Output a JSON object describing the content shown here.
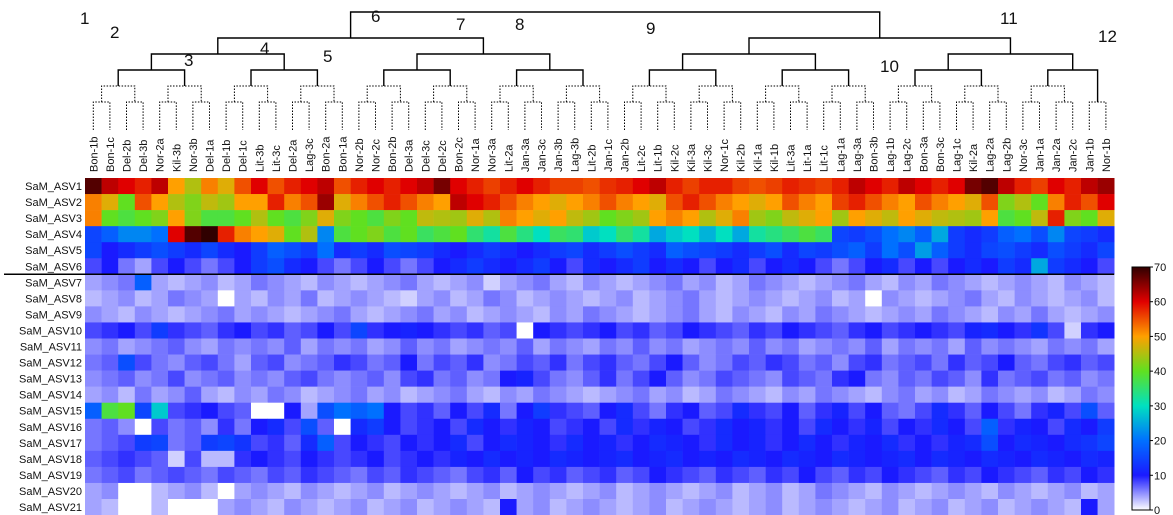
{
  "chart_data": {
    "type": "heatmap",
    "x": [
      "Bon-1b",
      "Bon-1c",
      "Del-2b",
      "Del-3b",
      "Nor-2a",
      "Kil-3b",
      "Nor-3b",
      "Del-1a",
      "Del-1b",
      "Del-1c",
      "Lit-3b",
      "Lit-3c",
      "Del-2a",
      "Lag-3c",
      "Bon-2a",
      "Bon-1a",
      "Nor-2b",
      "Nor-2c",
      "Bon-2b",
      "Del-3a",
      "Del-3c",
      "Del-2c",
      "Bon-2c",
      "Nor-1a",
      "Nor-3a",
      "Lit-2a",
      "Jan-3a",
      "Jan-3c",
      "Jan-3b",
      "Lag-3b",
      "Lit-2b",
      "Jan-1c",
      "Jan-2b",
      "Lit-2c",
      "Lit-1b",
      "Kil-2c",
      "Kil-3a",
      "Kil-3c",
      "Nor-1c",
      "Kil-2b",
      "Kil-1a",
      "Kil-1b",
      "Lit-3a",
      "Lit-1a",
      "Lit-1c",
      "Lag-1a",
      "Lag-3a",
      "Bon-3b",
      "Lag-1b",
      "Lag-2c",
      "Bon-3a",
      "Bon-3c",
      "Lag-1c",
      "Kil-2a",
      "Lag-2a",
      "Lag-2b",
      "Nor-3c",
      "Jan-1a",
      "Jan-2a",
      "Jan-2c",
      "Jan-1b",
      "Nor-1b"
    ],
    "y": [
      "SaM_ASV1",
      "SaM_ASV2",
      "SaM_ASV3",
      "SaM_ASV4",
      "SaM_ASV5",
      "SaM_ASV6",
      "SaM_ASV7",
      "SaM_ASV8",
      "SaM_ASV9",
      "SaM_ASV10",
      "SaM_ASV11",
      "SaM_ASV12",
      "SaM_ASV13",
      "SaM_ASV14",
      "SaM_ASV15",
      "SaM_ASV16",
      "SaM_ASV17",
      "SaM_ASV18",
      "SaM_ASV19",
      "SaM_ASV20",
      "SaM_ASV21"
    ],
    "values": [
      [
        68,
        62,
        60,
        58,
        62,
        50,
        45,
        52,
        48,
        55,
        60,
        55,
        58,
        60,
        62,
        55,
        58,
        60,
        58,
        60,
        62,
        66,
        60,
        58,
        56,
        58,
        60,
        58,
        56,
        56,
        55,
        57,
        58,
        60,
        62,
        58,
        56,
        58,
        58,
        56,
        55,
        56,
        58,
        57,
        56,
        58,
        62,
        60,
        58,
        62,
        60,
        58,
        60,
        66,
        68,
        62,
        58,
        56,
        60,
        58,
        62,
        64
      ],
      [
        52,
        48,
        40,
        55,
        50,
        45,
        42,
        46,
        44,
        50,
        50,
        58,
        52,
        55,
        64,
        48,
        52,
        55,
        58,
        55,
        52,
        50,
        62,
        60,
        58,
        55,
        52,
        50,
        48,
        50,
        52,
        55,
        52,
        50,
        48,
        55,
        58,
        55,
        52,
        50,
        48,
        50,
        55,
        52,
        50,
        56,
        58,
        55,
        52,
        50,
        55,
        52,
        50,
        48,
        55,
        42,
        45,
        40,
        52,
        58,
        55,
        60
      ],
      [
        52,
        40,
        38,
        40,
        42,
        50,
        42,
        38,
        38,
        40,
        45,
        40,
        38,
        42,
        48,
        42,
        40,
        38,
        42,
        40,
        46,
        45,
        44,
        48,
        45,
        52,
        50,
        48,
        50,
        46,
        44,
        40,
        42,
        44,
        50,
        52,
        50,
        45,
        48,
        52,
        44,
        42,
        46,
        48,
        50,
        44,
        50,
        48,
        46,
        50,
        48,
        46,
        45,
        44,
        50,
        38,
        40,
        46,
        58,
        42,
        40,
        48
      ],
      [
        15,
        18,
        22,
        22,
        20,
        60,
        68,
        70,
        58,
        52,
        50,
        48,
        40,
        45,
        22,
        38,
        40,
        42,
        38,
        40,
        36,
        38,
        40,
        35,
        32,
        38,
        34,
        30,
        36,
        35,
        28,
        30,
        35,
        32,
        25,
        28,
        30,
        26,
        30,
        25,
        32,
        34,
        36,
        38,
        36,
        15,
        14,
        16,
        20,
        22,
        18,
        25,
        14,
        12,
        14,
        18,
        20,
        16,
        22,
        15,
        14,
        12
      ],
      [
        15,
        10,
        12,
        14,
        16,
        14,
        12,
        15,
        12,
        10,
        14,
        18,
        16,
        14,
        20,
        12,
        14,
        12,
        16,
        15,
        14,
        12,
        10,
        12,
        14,
        12,
        10,
        12,
        14,
        15,
        12,
        14,
        16,
        14,
        12,
        18,
        16,
        15,
        14,
        12,
        14,
        16,
        12,
        15,
        14,
        16,
        18,
        14,
        20,
        16,
        24,
        18,
        14,
        12,
        15,
        16,
        14,
        12,
        16,
        14,
        12,
        15
      ],
      [
        8,
        10,
        6,
        4,
        8,
        10,
        8,
        6,
        8,
        10,
        14,
        16,
        12,
        10,
        8,
        6,
        8,
        10,
        8,
        6,
        8,
        10,
        12,
        14,
        12,
        10,
        12,
        14,
        10,
        8,
        12,
        10,
        12,
        14,
        10,
        12,
        10,
        8,
        10,
        12,
        8,
        10,
        12,
        10,
        8,
        6,
        8,
        10,
        12,
        8,
        10,
        8,
        10,
        12,
        10,
        14,
        12,
        25,
        14,
        12,
        10,
        8
      ],
      [
        4,
        5,
        6,
        18,
        4,
        3,
        4,
        5,
        3,
        4,
        6,
        5,
        4,
        3,
        5,
        4,
        3,
        4,
        5,
        6,
        4,
        3,
        4,
        5,
        2,
        4,
        5,
        6,
        4,
        3,
        5,
        4,
        3,
        4,
        5,
        6,
        4,
        5,
        3,
        4,
        6,
        5,
        4,
        3,
        4,
        5,
        6,
        4,
        3,
        5,
        4,
        6,
        5,
        4,
        3,
        4,
        5,
        4,
        3,
        5,
        4,
        3
      ],
      [
        3,
        4,
        5,
        3,
        4,
        6,
        5,
        4,
        0,
        4,
        3,
        5,
        4,
        6,
        3,
        4,
        5,
        4,
        3,
        2,
        4,
        5,
        3,
        4,
        6,
        5,
        3,
        4,
        5,
        4,
        3,
        4,
        5,
        3,
        4,
        5,
        6,
        4,
        3,
        4,
        5,
        4,
        3,
        4,
        5,
        3,
        4,
        0,
        5,
        4,
        3,
        4,
        5,
        6,
        4,
        3,
        5,
        4,
        3,
        4,
        5,
        3
      ],
      [
        5,
        4,
        3,
        5,
        4,
        3,
        4,
        5,
        6,
        4,
        5,
        4,
        3,
        4,
        5,
        6,
        4,
        3,
        4,
        5,
        6,
        4,
        5,
        3,
        4,
        5,
        4,
        3,
        5,
        4,
        6,
        5,
        4,
        3,
        4,
        5,
        6,
        4,
        3,
        5,
        4,
        3,
        5,
        4,
        6,
        5,
        4,
        3,
        4,
        5,
        4,
        6,
        5,
        4,
        3,
        5,
        4,
        6,
        4,
        3,
        4,
        5
      ],
      [
        8,
        9,
        10,
        8,
        14,
        9,
        8,
        7,
        9,
        10,
        8,
        9,
        7,
        8,
        10,
        8,
        15,
        9,
        10,
        11,
        10,
        9,
        8,
        9,
        7,
        8,
        0,
        10,
        9,
        8,
        9,
        10,
        8,
        9,
        7,
        8,
        10,
        9,
        8,
        7,
        9,
        8,
        10,
        9,
        8,
        7,
        9,
        10,
        8,
        9,
        10,
        9,
        8,
        11,
        12,
        10,
        9,
        13,
        8,
        2,
        9,
        10
      ],
      [
        5,
        6,
        4,
        5,
        6,
        7,
        5,
        4,
        6,
        5,
        6,
        5,
        7,
        4,
        6,
        5,
        6,
        4,
        5,
        7,
        5,
        6,
        4,
        5,
        6,
        5,
        7,
        4,
        6,
        5,
        4,
        6,
        5,
        7,
        5,
        6,
        4,
        5,
        6,
        5,
        7,
        5,
        6,
        4,
        5,
        6,
        5,
        7,
        4,
        6,
        5,
        6,
        4,
        7,
        5,
        6,
        5,
        4,
        6,
        5,
        6,
        4
      ],
      [
        6,
        7,
        16,
        8,
        6,
        5,
        7,
        8,
        6,
        4,
        7,
        8,
        5,
        6,
        7,
        9,
        8,
        6,
        7,
        10,
        6,
        8,
        7,
        9,
        5,
        6,
        8,
        7,
        9,
        6,
        8,
        9,
        7,
        6,
        8,
        10,
        7,
        5,
        6,
        8,
        7,
        9,
        8,
        6,
        7,
        5,
        8,
        9,
        6,
        7,
        8,
        6,
        9,
        7,
        8,
        10,
        7,
        6,
        8,
        9,
        7,
        8
      ],
      [
        5,
        6,
        7,
        5,
        6,
        8,
        5,
        6,
        7,
        5,
        6,
        5,
        7,
        8,
        6,
        5,
        6,
        7,
        5,
        8,
        9,
        6,
        7,
        5,
        6,
        10,
        11,
        8,
        6,
        5,
        7,
        9,
        6,
        8,
        10,
        7,
        5,
        6,
        8,
        7,
        6,
        5,
        8,
        7,
        6,
        9,
        10,
        6,
        5,
        7,
        6,
        8,
        7,
        5,
        9,
        6,
        7,
        8,
        6,
        7,
        5,
        6
      ],
      [
        4,
        5,
        3,
        6,
        4,
        5,
        7,
        4,
        3,
        5,
        4,
        6,
        5,
        3,
        4,
        5,
        6,
        4,
        5,
        3,
        4,
        5,
        6,
        4,
        3,
        5,
        4,
        6,
        5,
        4,
        3,
        4,
        5,
        6,
        4,
        5,
        3,
        4,
        6,
        5,
        4,
        3,
        5,
        4,
        6,
        5,
        4,
        3,
        5,
        6,
        4,
        5,
        3,
        4,
        6,
        5,
        4,
        5,
        3,
        4,
        6,
        5
      ],
      [
        18,
        38,
        40,
        15,
        28,
        8,
        9,
        10,
        8,
        7,
        0,
        0,
        10,
        4,
        16,
        20,
        18,
        20,
        10,
        8,
        9,
        7,
        10,
        8,
        12,
        6,
        10,
        14,
        9,
        8,
        7,
        10,
        12,
        8,
        6,
        9,
        10,
        7,
        8,
        12,
        9,
        8,
        10,
        7,
        9,
        11,
        8,
        10,
        7,
        6,
        8,
        12,
        9,
        7,
        10,
        8,
        6,
        9,
        11,
        8,
        16,
        7
      ],
      [
        6,
        7,
        5,
        0,
        8,
        6,
        7,
        5,
        9,
        6,
        10,
        12,
        8,
        16,
        7,
        0,
        12,
        14,
        10,
        8,
        9,
        10,
        8,
        12,
        10,
        9,
        11,
        10,
        8,
        9,
        10,
        8,
        12,
        9,
        11,
        10,
        8,
        9,
        12,
        10,
        11,
        9,
        10,
        8,
        12,
        10,
        9,
        11,
        8,
        10,
        9,
        12,
        10,
        8,
        18,
        9,
        11,
        10,
        8,
        12,
        10,
        14
      ],
      [
        6,
        7,
        8,
        14,
        15,
        6,
        7,
        14,
        15,
        13,
        8,
        9,
        7,
        12,
        18,
        8,
        10,
        9,
        8,
        10,
        9,
        10,
        12,
        8,
        10,
        12,
        11,
        10,
        9,
        12,
        10,
        11,
        9,
        10,
        12,
        11,
        10,
        9,
        12,
        10,
        11,
        9,
        10,
        12,
        10,
        9,
        11,
        10,
        12,
        9,
        10,
        9,
        11,
        12,
        16,
        10,
        12,
        11,
        10,
        12,
        13,
        15
      ],
      [
        7,
        8,
        9,
        8,
        7,
        2,
        8,
        3,
        3,
        9,
        10,
        9,
        8,
        10,
        9,
        8,
        9,
        10,
        8,
        9,
        10,
        9,
        11,
        10,
        12,
        10,
        11,
        10,
        12,
        11,
        10,
        11,
        12,
        10,
        11,
        12,
        10,
        11,
        10,
        12,
        11,
        10,
        12,
        11,
        10,
        12,
        11,
        10,
        11,
        12,
        10,
        12,
        11,
        10,
        12,
        11,
        10,
        12,
        11,
        10,
        12,
        11
      ],
      [
        6,
        7,
        8,
        6,
        7,
        8,
        7,
        6,
        8,
        7,
        6,
        8,
        7,
        9,
        8,
        7,
        6,
        8,
        7,
        9,
        8,
        7,
        6,
        8,
        9,
        7,
        10,
        8,
        9,
        7,
        8,
        9,
        7,
        8,
        10,
        9,
        8,
        7,
        9,
        8,
        7,
        9,
        8,
        10,
        8,
        7,
        9,
        8,
        10,
        9,
        8,
        7,
        9,
        8,
        10,
        9,
        8,
        7,
        9,
        8,
        10,
        9
      ],
      [
        4,
        5,
        0,
        0,
        3,
        4,
        5,
        3,
        0,
        4,
        5,
        4,
        3,
        5,
        4,
        3,
        4,
        5,
        3,
        4,
        5,
        4,
        3,
        4,
        5,
        3,
        4,
        5,
        4,
        3,
        4,
        5,
        3,
        4,
        5,
        4,
        3,
        4,
        5,
        3,
        4,
        5,
        3,
        4,
        6,
        5,
        4,
        3,
        5,
        4,
        3,
        4,
        5,
        4,
        3,
        5,
        4,
        3,
        4,
        5,
        3,
        4
      ],
      [
        4,
        3,
        0,
        0,
        3,
        0,
        0,
        0,
        4,
        5,
        4,
        3,
        5,
        4,
        3,
        4,
        5,
        3,
        4,
        5,
        3,
        4,
        5,
        4,
        3,
        10,
        4,
        5,
        3,
        4,
        5,
        4,
        3,
        4,
        5,
        3,
        4,
        5,
        4,
        3,
        4,
        5,
        3,
        4,
        5,
        4,
        3,
        4,
        5,
        3,
        4,
        5,
        3,
        4,
        5,
        3,
        4,
        5,
        4,
        3,
        10,
        4
      ]
    ],
    "colorbar": {
      "lim": [
        0,
        70
      ],
      "ticks": [
        0,
        10,
        20,
        30,
        40,
        50,
        60,
        70
      ],
      "colors": [
        "#ffffff",
        "#1a1aff",
        "#0070ff",
        "#00e0c0",
        "#60e020",
        "#ffa000",
        "#e00000",
        "#300000"
      ]
    },
    "annotations": [
      "1",
      "2",
      "3",
      "4",
      "5",
      "6",
      "7",
      "8",
      "9",
      "10",
      "11",
      "12"
    ]
  }
}
